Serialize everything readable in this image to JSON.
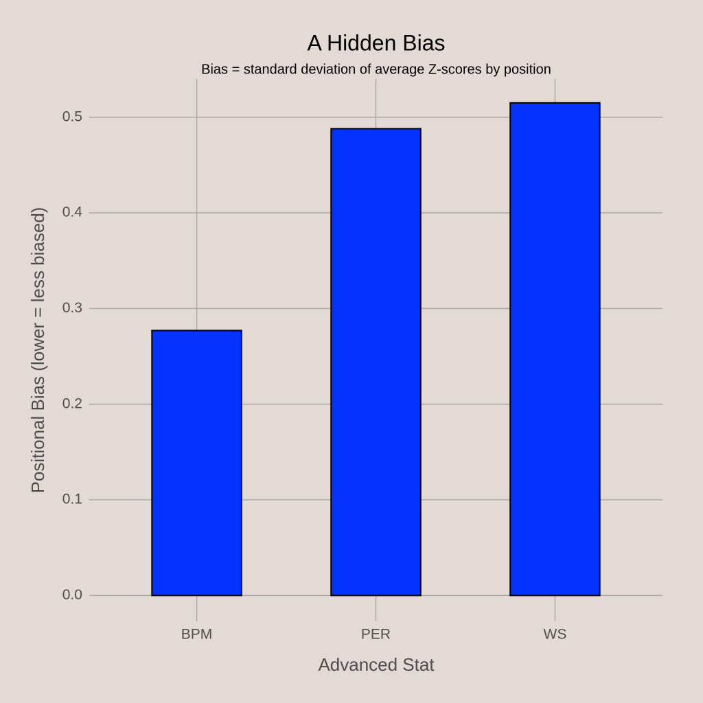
{
  "chart_data": {
    "type": "bar",
    "title": "A Hidden Bias",
    "subtitle": "Bias = standard deviation of average Z-scores by position",
    "x_label": "Advanced Stat",
    "y_label": "Positional Bias (lower = less biased)",
    "categories": [
      "BPM",
      "PER",
      "WS"
    ],
    "values": [
      0.277,
      0.488,
      0.515
    ],
    "color": "#0433ff",
    "ylim": [
      -0.027,
      0.54
    ],
    "yticks": [
      {
        "value": 0,
        "label": "0.0"
      },
      0.1,
      0.2,
      0.3,
      0.4,
      0.5
    ],
    "grid": true
  }
}
